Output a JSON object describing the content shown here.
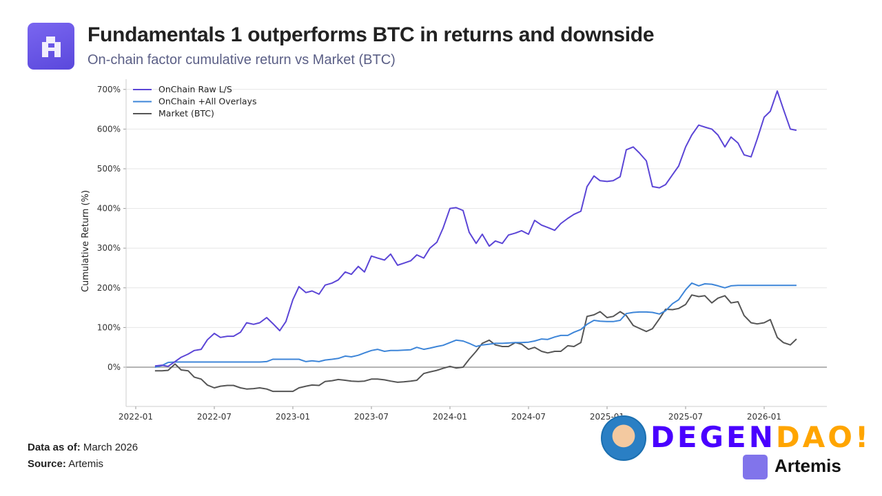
{
  "header": {
    "title": "Fundamentals 1 outperforms BTC in returns and downside",
    "subtitle": "On-chain factor cumulative return vs Market (BTC)"
  },
  "footer": {
    "data_as_of_label": "Data as of:",
    "data_as_of_value": "March 2026",
    "source_label": "Source:",
    "source_value": "Artemis"
  },
  "watermark": {
    "part1": "DEGEN",
    "part2": "DAO!",
    "brand": "Artemis"
  },
  "chart_data": {
    "type": "line",
    "ylabel": "Cumulative Return (%)",
    "xlabel": "",
    "ylim": [
      -100,
      750
    ],
    "yticks": [
      0,
      100,
      200,
      300,
      400,
      500,
      600,
      700
    ],
    "ytick_labels": [
      "0%",
      "100%",
      "200%",
      "300%",
      "400%",
      "500%",
      "600%",
      "700%"
    ],
    "xticks": [
      "2022-01",
      "2022-07",
      "2023-01",
      "2023-07",
      "2024-01",
      "2024-07",
      "2025-01",
      "2025-07",
      "2026-01"
    ],
    "grid": "horizontal",
    "legend": "top-left",
    "x": [
      "2022-02-15",
      "2022-03-01",
      "2022-03-15",
      "2022-04-01",
      "2022-04-15",
      "2022-05-01",
      "2022-05-15",
      "2022-06-01",
      "2022-06-15",
      "2022-07-01",
      "2022-07-15",
      "2022-08-01",
      "2022-08-15",
      "2022-09-01",
      "2022-09-15",
      "2022-10-01",
      "2022-10-15",
      "2022-11-01",
      "2022-11-15",
      "2022-12-01",
      "2022-12-15",
      "2023-01-01",
      "2023-01-15",
      "2023-02-01",
      "2023-02-15",
      "2023-03-01",
      "2023-03-15",
      "2023-04-01",
      "2023-04-15",
      "2023-05-01",
      "2023-05-15",
      "2023-06-01",
      "2023-06-15",
      "2023-07-01",
      "2023-07-15",
      "2023-08-01",
      "2023-08-15",
      "2023-09-01",
      "2023-09-15",
      "2023-10-01",
      "2023-10-15",
      "2023-11-01",
      "2023-11-15",
      "2023-12-01",
      "2023-12-15",
      "2024-01-01",
      "2024-01-15",
      "2024-02-01",
      "2024-02-15",
      "2024-03-01",
      "2024-03-15",
      "2024-04-01",
      "2024-04-15",
      "2024-05-01",
      "2024-05-15",
      "2024-06-01",
      "2024-06-15",
      "2024-07-01",
      "2024-07-15",
      "2024-08-01",
      "2024-08-15",
      "2024-09-01",
      "2024-09-15",
      "2024-10-01",
      "2024-10-15",
      "2024-11-01",
      "2024-11-15",
      "2024-12-01",
      "2024-12-15",
      "2025-01-01",
      "2025-01-15",
      "2025-02-01",
      "2025-02-15",
      "2025-03-01",
      "2025-03-15",
      "2025-04-01",
      "2025-04-15",
      "2025-05-01",
      "2025-05-15",
      "2025-06-01",
      "2025-06-15",
      "2025-07-01",
      "2025-07-15",
      "2025-08-01",
      "2025-08-15",
      "2025-09-01",
      "2025-09-15",
      "2025-10-01",
      "2025-10-15",
      "2025-11-01",
      "2025-11-15",
      "2025-12-01",
      "2025-12-15",
      "2026-01-01",
      "2026-01-15",
      "2026-02-01",
      "2026-02-15",
      "2026-03-01",
      "2026-03-15"
    ],
    "series": [
      {
        "name": "OnChain Raw L/S",
        "color": "#5b45d6",
        "values": [
          3,
          5,
          2,
          14,
          25,
          33,
          42,
          45,
          69,
          85,
          75,
          78,
          78,
          88,
          112,
          108,
          112,
          125,
          110,
          92,
          115,
          170,
          203,
          188,
          192,
          184,
          207,
          212,
          220,
          240,
          234,
          254,
          240,
          280,
          275,
          270,
          285,
          257,
          262,
          268,
          283,
          275,
          300,
          315,
          350,
          400,
          402,
          395,
          340,
          312,
          335,
          305,
          318,
          312,
          333,
          338,
          344,
          335,
          370,
          358,
          352,
          345,
          362,
          375,
          385,
          393,
          455,
          482,
          470,
          468,
          470,
          480,
          548,
          555,
          540,
          520,
          455,
          452,
          460,
          485,
          507,
          555,
          585,
          610,
          605,
          600,
          585,
          555,
          580,
          565,
          535,
          530,
          575,
          630,
          645,
          696,
          650,
          600,
          597
        ]
      },
      {
        "name": "OnChain +All Overlays",
        "color": "#3d85d8",
        "values": [
          0,
          4,
          12,
          13,
          13,
          13,
          13,
          13,
          13,
          13,
          13,
          13,
          13,
          13,
          13,
          13,
          13,
          14,
          20,
          20,
          20,
          20,
          20,
          14,
          16,
          14,
          18,
          20,
          22,
          28,
          26,
          30,
          36,
          42,
          45,
          40,
          42,
          42,
          43,
          44,
          50,
          45,
          48,
          52,
          55,
          62,
          68,
          66,
          60,
          52,
          56,
          58,
          60,
          60,
          61,
          62,
          62,
          63,
          66,
          71,
          70,
          76,
          80,
          80,
          88,
          95,
          108,
          118,
          116,
          115,
          115,
          118,
          135,
          138,
          139,
          139,
          138,
          134,
          142,
          160,
          170,
          195,
          212,
          205,
          210,
          209,
          205,
          200,
          205,
          206,
          206,
          206,
          206,
          206,
          206,
          206,
          206,
          206,
          206
        ]
      },
      {
        "name": "Market (BTC)",
        "color": "#555555",
        "values": [
          -9,
          -9,
          -8,
          8,
          -7,
          -9,
          -25,
          -30,
          -45,
          -52,
          -48,
          -46,
          -46,
          -52,
          -55,
          -54,
          -52,
          -55,
          -61,
          -61,
          -61,
          -61,
          -52,
          -48,
          -45,
          -46,
          -36,
          -34,
          -31,
          -33,
          -35,
          -36,
          -35,
          -30,
          -30,
          -32,
          -35,
          -38,
          -37,
          -35,
          -33,
          -16,
          -12,
          -8,
          -3,
          2,
          -2,
          0,
          20,
          40,
          60,
          68,
          56,
          52,
          52,
          62,
          58,
          45,
          50,
          40,
          36,
          40,
          40,
          54,
          52,
          62,
          128,
          132,
          140,
          125,
          128,
          140,
          130,
          105,
          98,
          90,
          97,
          122,
          146,
          145,
          148,
          158,
          182,
          178,
          180,
          162,
          174,
          180,
          162,
          165,
          130,
          112,
          109,
          112,
          120,
          75,
          62,
          56,
          71
        ]
      }
    ]
  }
}
